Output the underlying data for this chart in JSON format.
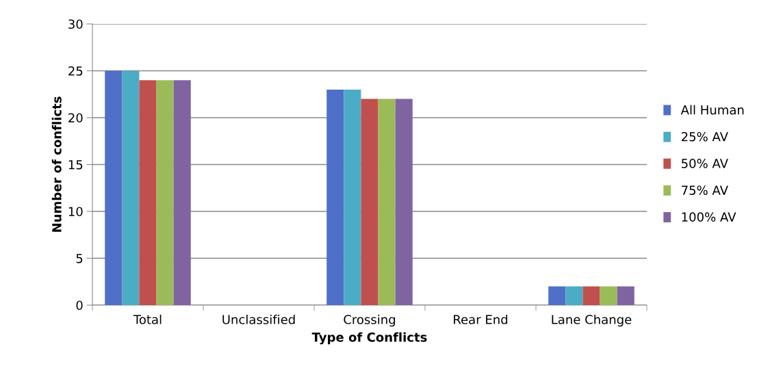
{
  "chart_data": {
    "type": "bar",
    "xlabel": "Type of Conflicts",
    "ylabel": "Number of conflicts",
    "categories": [
      "Total",
      "Unclassified",
      "Crossing",
      "Rear End",
      "Lane Change"
    ],
    "series": [
      {
        "name": "All Human",
        "color": "#4f6fc8",
        "values": [
          25,
          0,
          23,
          0,
          2
        ]
      },
      {
        "name": "25% AV",
        "color": "#4bacc6",
        "values": [
          25,
          0,
          23,
          0,
          2
        ]
      },
      {
        "name": "50% AV",
        "color": "#c0504d",
        "values": [
          24,
          0,
          22,
          0,
          2
        ]
      },
      {
        "name": "75% AV",
        "color": "#9bbb59",
        "values": [
          24,
          0,
          22,
          0,
          2
        ]
      },
      {
        "name": "100% AV",
        "color": "#8064a2",
        "values": [
          24,
          0,
          22,
          0,
          2
        ]
      }
    ],
    "ylim": [
      0,
      30
    ],
    "yticks": [
      0,
      5,
      10,
      15,
      20,
      25,
      30
    ],
    "grid": "y",
    "legend": "right"
  }
}
